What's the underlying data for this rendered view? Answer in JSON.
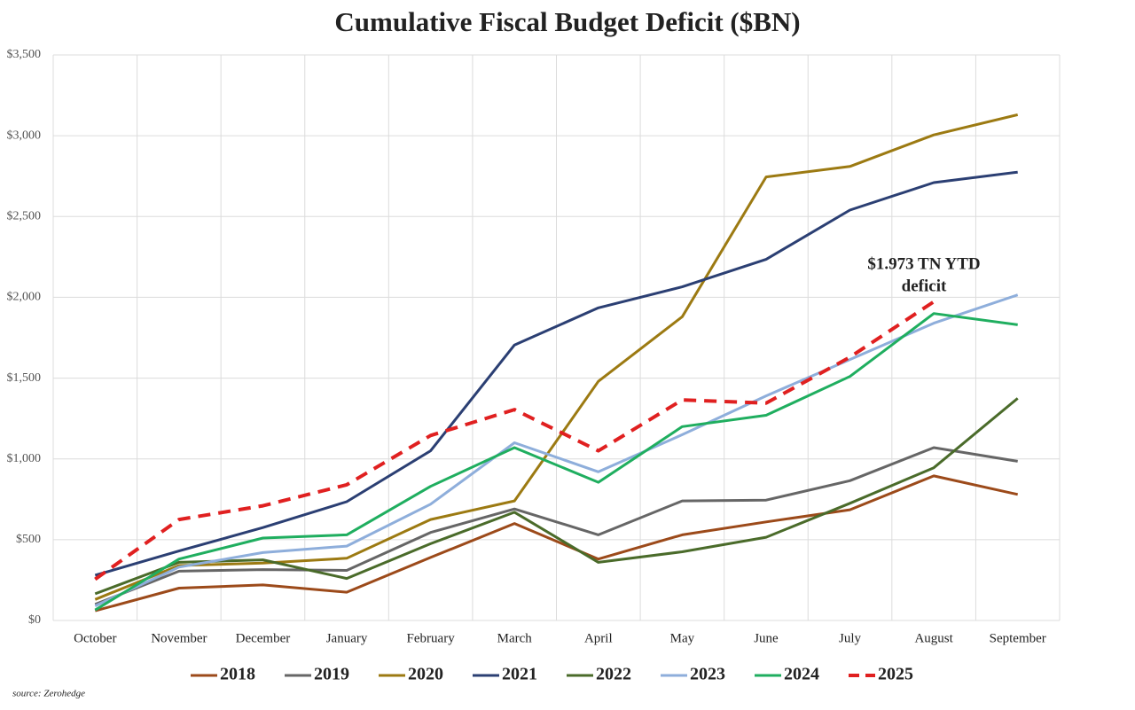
{
  "chart_data": {
    "type": "line",
    "title": "Cumulative Fiscal Budget Deficit ($BN)",
    "categories": [
      "October",
      "November",
      "December",
      "January",
      "February",
      "March",
      "April",
      "May",
      "June",
      "July",
      "August",
      "September"
    ],
    "ylim": [
      0,
      3500
    ],
    "yticks": [
      {
        "value": 0,
        "label": "$0"
      },
      {
        "value": 500,
        "label": "$500"
      },
      {
        "value": 1000,
        "label": "$1,000"
      },
      {
        "value": 1500,
        "label": "$1,500"
      },
      {
        "value": 2000,
        "label": "$2,000"
      },
      {
        "value": 2500,
        "label": "$2,500"
      },
      {
        "value": 3000,
        "label": "$3,000"
      },
      {
        "value": 3500,
        "label": "$3,500"
      }
    ],
    "grid": true,
    "legend": "bottom",
    "series": [
      {
        "name": "2018",
        "color": "#9c4a1a",
        "line_style": "solid",
        "values": [
          60,
          200,
          220,
          175,
          390,
          600,
          380,
          530,
          610,
          685,
          895,
          780
        ]
      },
      {
        "name": "2019",
        "color": "#666666",
        "line_style": "solid",
        "values": [
          100,
          305,
          315,
          310,
          545,
          690,
          530,
          740,
          745,
          865,
          1070,
          985
        ]
      },
      {
        "name": "2020",
        "color": "#9c7a12",
        "line_style": "solid",
        "values": [
          130,
          340,
          355,
          385,
          625,
          740,
          1480,
          1880,
          2745,
          2810,
          3005,
          3130
        ]
      },
      {
        "name": "2021",
        "color": "#2b3f73",
        "line_style": "solid",
        "values": [
          280,
          430,
          575,
          735,
          1050,
          1705,
          1935,
          2065,
          2235,
          2540,
          2710,
          2775
        ]
      },
      {
        "name": "2022",
        "color": "#4a6b2a",
        "line_style": "solid",
        "values": [
          165,
          360,
          375,
          260,
          475,
          670,
          360,
          425,
          515,
          725,
          945,
          1375
        ]
      },
      {
        "name": "2023",
        "color": "#8eaedb",
        "line_style": "solid",
        "values": [
          90,
          330,
          420,
          460,
          720,
          1100,
          920,
          1150,
          1390,
          1615,
          1840,
          2015
        ]
      },
      {
        "name": "2024",
        "color": "#1fae5f",
        "line_style": "solid",
        "values": [
          65,
          380,
          510,
          530,
          830,
          1070,
          855,
          1200,
          1270,
          1510,
          1900,
          1830
        ]
      },
      {
        "name": "2025",
        "color": "#e02020",
        "line_style": "dashed",
        "values": [
          255,
          625,
          710,
          840,
          1145,
          1305,
          1050,
          1365,
          1345,
          1630,
          1973,
          null
        ]
      }
    ],
    "annotation": [
      "$1.973 TN YTD",
      "deficit"
    ],
    "source": "source: Zerohedge"
  }
}
